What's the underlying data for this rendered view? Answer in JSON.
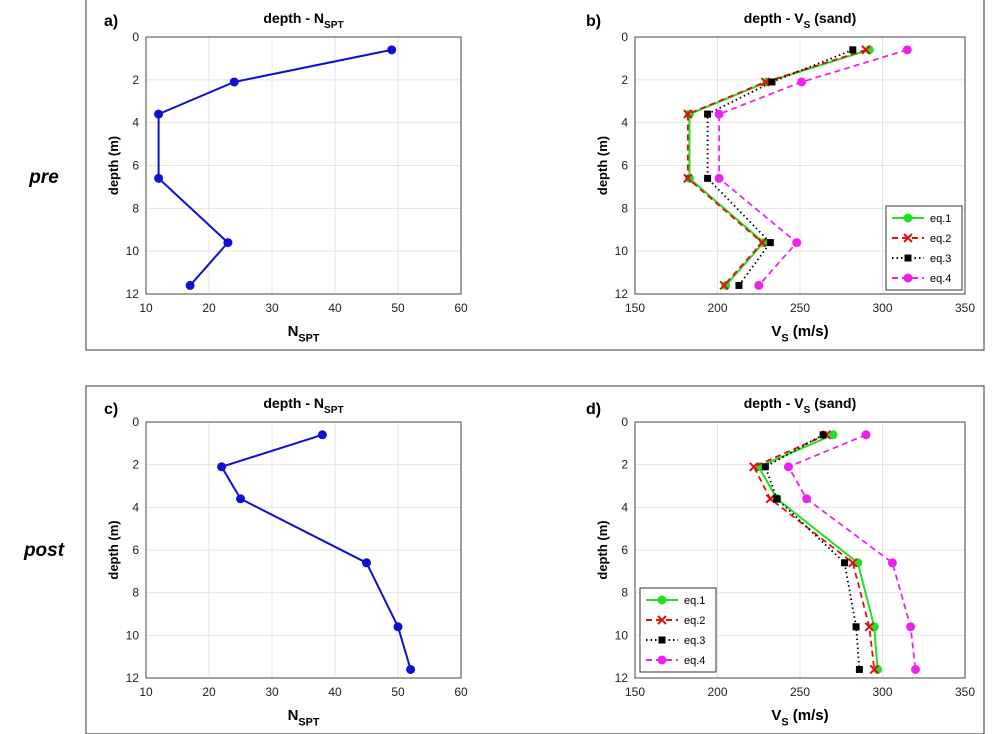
{
  "rows": [
    {
      "label": "pre"
    },
    {
      "label": "post"
    }
  ],
  "panel_labels": [
    "a)",
    "b)",
    "c)",
    "d)"
  ],
  "chart_data": [
    {
      "id": "a",
      "type": "line",
      "title": {
        "main": "depth - N",
        "sub": "SPT"
      },
      "xlabel": {
        "main": "N",
        "sub": "SPT"
      },
      "ylabel": "depth (m)",
      "xlim": [
        10,
        60
      ],
      "ylim": [
        0,
        12
      ],
      "y_reversed": true,
      "grid": true,
      "x_ticks": [
        10,
        20,
        30,
        40,
        50,
        60
      ],
      "y_ticks": [
        0,
        2,
        4,
        6,
        8,
        10,
        12
      ],
      "legend": null,
      "series": [
        {
          "color": "#1010d0",
          "line": "solid",
          "marker": "circle",
          "points": [
            [
              49,
              0.6
            ],
            [
              24,
              2.1
            ],
            [
              12,
              3.6
            ],
            [
              12,
              6.6
            ],
            [
              23,
              9.6
            ],
            [
              17,
              11.6
            ]
          ]
        }
      ]
    },
    {
      "id": "b",
      "type": "line",
      "title": {
        "main": "depth - V",
        "sub": "S",
        "suffix": " (sand)"
      },
      "xlabel": {
        "main": "V",
        "sub": "S",
        "suffix": " (m/s)"
      },
      "ylabel": "depth (m)",
      "xlim": [
        150,
        350
      ],
      "ylim": [
        0,
        12
      ],
      "y_reversed": true,
      "grid": true,
      "x_ticks": [
        150,
        200,
        250,
        300,
        350
      ],
      "y_ticks": [
        0,
        2,
        4,
        6,
        8,
        10,
        12
      ],
      "legend": "right",
      "series": [
        {
          "name": "eq.1",
          "color": "#22e022",
          "line": "solid",
          "marker": "circle",
          "points": [
            [
              292,
              0.6
            ],
            [
              230,
              2.1
            ],
            [
              183,
              3.6
            ],
            [
              183,
              6.6
            ],
            [
              228,
              9.6
            ],
            [
              205,
              11.6
            ]
          ]
        },
        {
          "name": "eq.2",
          "color": "#e01010",
          "line": "dashed",
          "marker": "x",
          "points": [
            [
              290,
              0.6
            ],
            [
              229,
              2.1
            ],
            [
              182,
              3.6
            ],
            [
              182,
              6.6
            ],
            [
              227,
              9.6
            ],
            [
              204,
              11.6
            ]
          ]
        },
        {
          "name": "eq.3",
          "color": "#000000",
          "line": "dotted",
          "marker": "square",
          "points": [
            [
              282,
              0.6
            ],
            [
              233,
              2.1
            ],
            [
              194,
              3.6
            ],
            [
              194,
              6.6
            ],
            [
              232,
              9.6
            ],
            [
              213,
              11.6
            ]
          ]
        },
        {
          "name": "eq.4",
          "color": "#ee22ee",
          "line": "dashed",
          "marker": "circle",
          "points": [
            [
              315,
              0.6
            ],
            [
              251,
              2.1
            ],
            [
              201,
              3.6
            ],
            [
              201,
              6.6
            ],
            [
              248,
              9.6
            ],
            [
              225,
              11.6
            ]
          ]
        }
      ]
    },
    {
      "id": "c",
      "type": "line",
      "title": {
        "main": "depth - N",
        "sub": "SPT"
      },
      "xlabel": {
        "main": "N",
        "sub": "SPT"
      },
      "ylabel": "depth (m)",
      "xlim": [
        10,
        60
      ],
      "ylim": [
        0,
        12
      ],
      "y_reversed": true,
      "grid": true,
      "x_ticks": [
        10,
        20,
        30,
        40,
        50,
        60
      ],
      "y_ticks": [
        0,
        2,
        4,
        6,
        8,
        10,
        12
      ],
      "legend": null,
      "series": [
        {
          "color": "#1010d0",
          "line": "solid",
          "marker": "circle",
          "points": [
            [
              38,
              0.6
            ],
            [
              22,
              2.1
            ],
            [
              25,
              3.6
            ],
            [
              45,
              6.6
            ],
            [
              50,
              9.6
            ],
            [
              52,
              11.6
            ]
          ]
        }
      ]
    },
    {
      "id": "d",
      "type": "line",
      "title": {
        "main": "depth - V",
        "sub": "S",
        "suffix": " (sand)"
      },
      "xlabel": {
        "main": "V",
        "sub": "S",
        "suffix": " (m/s)"
      },
      "ylabel": "depth (m)",
      "xlim": [
        150,
        350
      ],
      "ylim": [
        0,
        12
      ],
      "y_reversed": true,
      "grid": true,
      "x_ticks": [
        150,
        200,
        250,
        300,
        350
      ],
      "y_ticks": [
        0,
        2,
        4,
        6,
        8,
        10,
        12
      ],
      "legend": "left",
      "series": [
        {
          "name": "eq.1",
          "color": "#22e022",
          "line": "solid",
          "marker": "circle",
          "points": [
            [
              270,
              0.6
            ],
            [
              225,
              2.1
            ],
            [
              236,
              3.6
            ],
            [
              285,
              6.6
            ],
            [
              295,
              9.6
            ],
            [
              297,
              11.6
            ]
          ]
        },
        {
          "name": "eq.2",
          "color": "#e01010",
          "line": "dashed",
          "marker": "x",
          "points": [
            [
              266,
              0.6
            ],
            [
              222,
              2.1
            ],
            [
              232,
              3.6
            ],
            [
              282,
              6.6
            ],
            [
              292,
              9.6
            ],
            [
              295,
              11.6
            ]
          ]
        },
        {
          "name": "eq.3",
          "color": "#000000",
          "line": "dotted",
          "marker": "square",
          "points": [
            [
              264,
              0.6
            ],
            [
              229,
              2.1
            ],
            [
              236,
              3.6
            ],
            [
              277,
              6.6
            ],
            [
              284,
              9.6
            ],
            [
              286,
              11.6
            ]
          ]
        },
        {
          "name": "eq.4",
          "color": "#ee22ee",
          "line": "dashed",
          "marker": "circle",
          "points": [
            [
              290,
              0.6
            ],
            [
              243,
              2.1
            ],
            [
              254,
              3.6
            ],
            [
              306,
              6.6
            ],
            [
              317,
              9.6
            ],
            [
              320,
              11.6
            ]
          ]
        }
      ]
    }
  ]
}
